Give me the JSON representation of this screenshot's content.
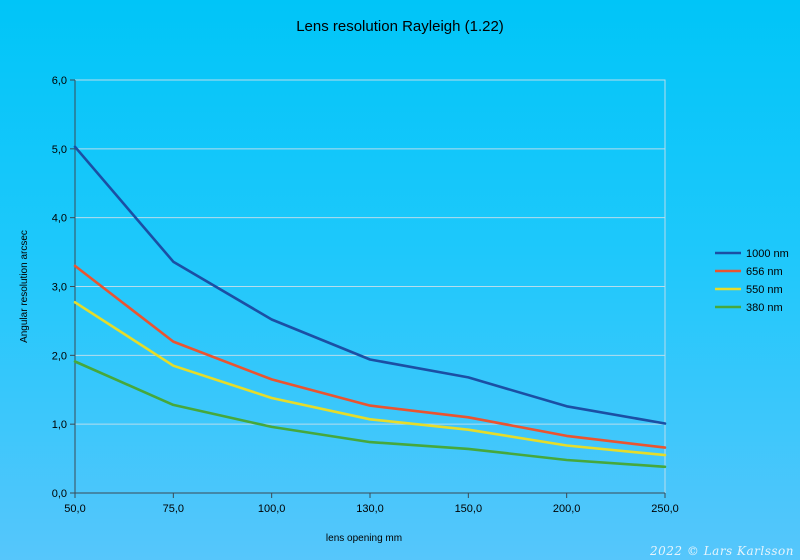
{
  "chart_data": {
    "type": "line",
    "title": "Lens resolution Rayleigh (1.22)",
    "xlabel": "lens opening mm",
    "ylabel": "Angular resolution arcsec",
    "categories": [
      "50,0",
      "75,0",
      "100,0",
      "130,0",
      "150,0",
      "200,0",
      "250,0"
    ],
    "y_ticks": [
      "0,0",
      "1,0",
      "2,0",
      "3,0",
      "4,0",
      "5,0",
      "6,0"
    ],
    "ylim": [
      0,
      6
    ],
    "grid": true,
    "legend_position": "right",
    "series": [
      {
        "name": "1000 nm",
        "color": "#1b4fa4",
        "values": [
          5.03,
          3.36,
          2.52,
          1.94,
          1.68,
          1.26,
          1.01
        ]
      },
      {
        "name": "656 nm",
        "color": "#ea5430",
        "values": [
          3.3,
          2.2,
          1.65,
          1.27,
          1.1,
          0.83,
          0.66
        ]
      },
      {
        "name": "550 nm",
        "color": "#e6dc2a",
        "values": [
          2.77,
          1.85,
          1.38,
          1.07,
          0.92,
          0.69,
          0.55
        ]
      },
      {
        "name": "380 nm",
        "color": "#46a83c",
        "values": [
          1.91,
          1.28,
          0.96,
          0.74,
          0.64,
          0.48,
          0.38
        ]
      }
    ]
  },
  "watermark": "2022 © Lars Karlsson"
}
